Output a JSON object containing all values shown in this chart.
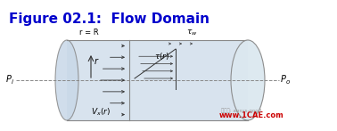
{
  "title": "Figure 02.1:  Flow Domain",
  "title_color": "#0000CC",
  "title_fontsize": 11,
  "bg_color": "#ffffff",
  "cylinder_fill": "#c8d8e8",
  "cylinder_edge": "#888888",
  "axis_line_color": "#888888",
  "arrow_color": "#333333",
  "watermark_color": "#cc0000",
  "watermark_text": "www.1CAE.com",
  "watermark_sub": "微信号: ansys-good"
}
